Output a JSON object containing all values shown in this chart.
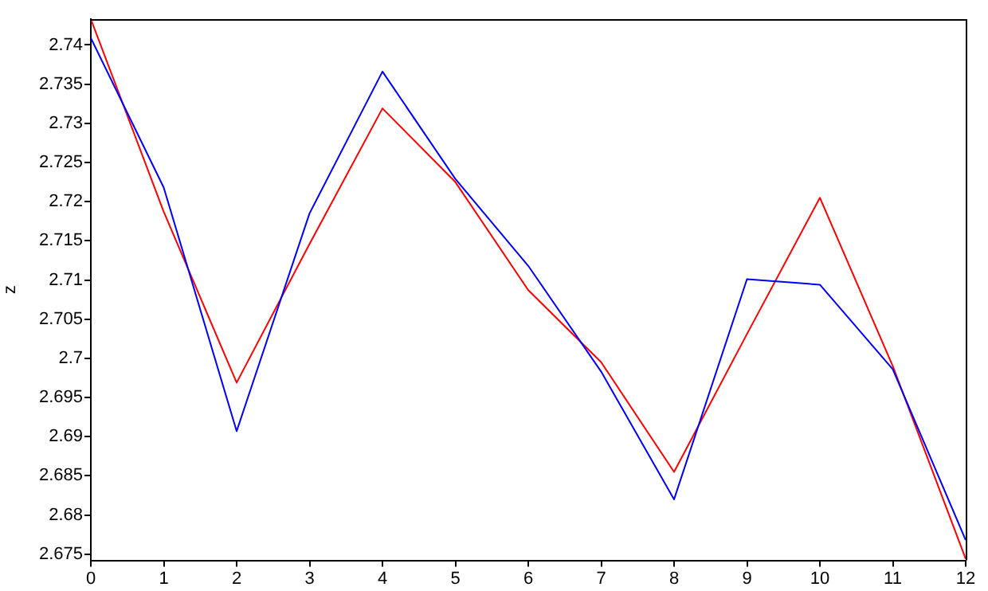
{
  "chart_data": {
    "type": "line",
    "ylabel": "z",
    "x": [
      0,
      1,
      2,
      3,
      4,
      5,
      6,
      7,
      8,
      9,
      10,
      11,
      12
    ],
    "xlim": [
      0,
      12
    ],
    "xticks": [
      0,
      1,
      2,
      3,
      4,
      5,
      6,
      7,
      8,
      9,
      10,
      11,
      12
    ],
    "ylim": [
      2.6742,
      2.7433
    ],
    "yticks": [
      2.675,
      2.68,
      2.685,
      2.69,
      2.695,
      2.7,
      2.705,
      2.71,
      2.715,
      2.72,
      2.725,
      2.73,
      2.735,
      2.74
    ],
    "grid": false,
    "legend": false,
    "marker": "none",
    "line_style": "solid",
    "series": [
      {
        "color": "#0000ff",
        "values": [
          2.7409,
          2.7218,
          2.6907,
          2.7185,
          2.7366,
          2.7229,
          2.7118,
          2.6983,
          2.682,
          2.7101,
          2.7094,
          2.6986,
          2.6768
        ]
      },
      {
        "color": "#ff0000",
        "values": [
          2.7433,
          2.7187,
          2.6969,
          2.7146,
          2.7319,
          2.7225,
          2.7087,
          2.6995,
          2.6855,
          2.7031,
          2.7205,
          2.699,
          2.6744
        ]
      }
    ]
  }
}
